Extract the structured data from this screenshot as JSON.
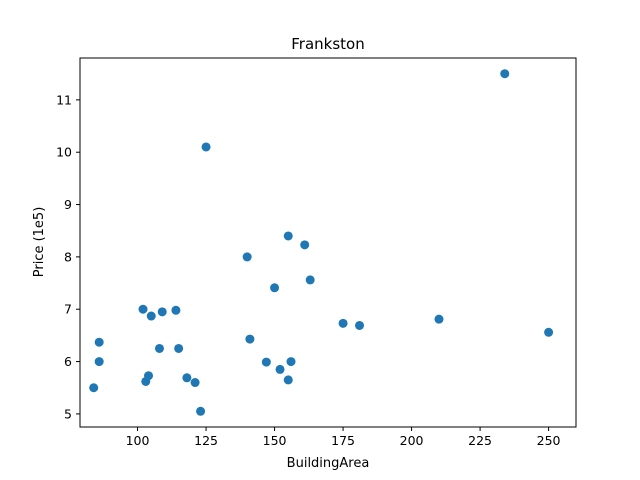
{
  "chart_data": {
    "type": "scatter",
    "title": "Frankston",
    "xlabel": "BuildingArea",
    "ylabel": "Price (1e5)",
    "xlim": [
      79,
      260
    ],
    "ylim": [
      4.75,
      11.8
    ],
    "xticks": [
      100,
      125,
      150,
      175,
      200,
      225,
      250
    ],
    "yticks": [
      5,
      6,
      7,
      8,
      9,
      10,
      11
    ],
    "grid": false,
    "color": "#1f77b4",
    "points": [
      {
        "x": 84,
        "y": 5.5
      },
      {
        "x": 86,
        "y": 6.37
      },
      {
        "x": 86,
        "y": 6.0
      },
      {
        "x": 102,
        "y": 7.0
      },
      {
        "x": 103,
        "y": 5.62
      },
      {
        "x": 104,
        "y": 5.73
      },
      {
        "x": 105,
        "y": 6.87
      },
      {
        "x": 108,
        "y": 6.25
      },
      {
        "x": 109,
        "y": 6.95
      },
      {
        "x": 114,
        "y": 6.98
      },
      {
        "x": 115,
        "y": 6.25
      },
      {
        "x": 118,
        "y": 5.69
      },
      {
        "x": 121,
        "y": 5.6
      },
      {
        "x": 123,
        "y": 5.05
      },
      {
        "x": 125,
        "y": 10.1
      },
      {
        "x": 140,
        "y": 8.0
      },
      {
        "x": 141,
        "y": 6.43
      },
      {
        "x": 147,
        "y": 5.99
      },
      {
        "x": 150,
        "y": 7.41
      },
      {
        "x": 152,
        "y": 5.85
      },
      {
        "x": 155,
        "y": 8.4
      },
      {
        "x": 155,
        "y": 5.65
      },
      {
        "x": 156,
        "y": 6.0
      },
      {
        "x": 161,
        "y": 8.23
      },
      {
        "x": 163,
        "y": 7.56
      },
      {
        "x": 175,
        "y": 6.73
      },
      {
        "x": 181,
        "y": 6.69
      },
      {
        "x": 210,
        "y": 6.81
      },
      {
        "x": 234,
        "y": 11.5
      },
      {
        "x": 250,
        "y": 6.56
      }
    ]
  }
}
